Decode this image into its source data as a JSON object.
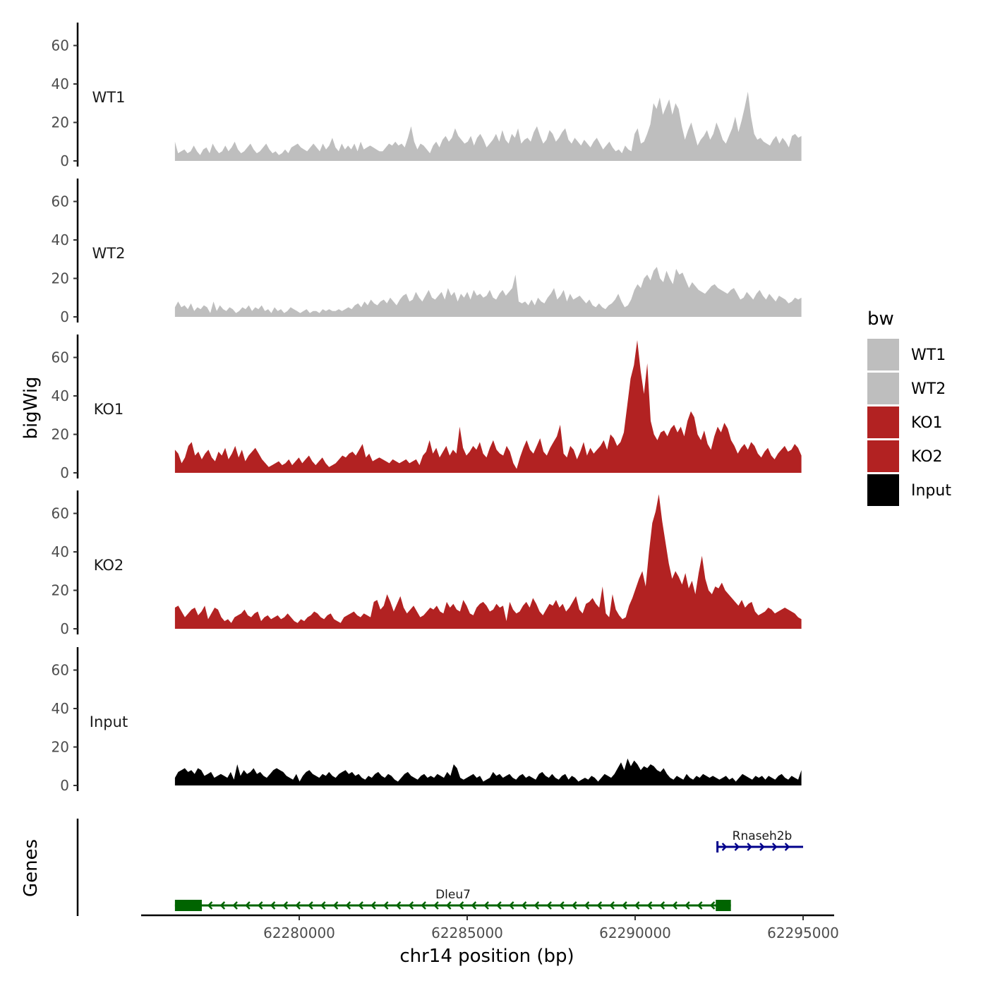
{
  "chart_data": {
    "type": "area",
    "chromosome": "chr14",
    "xlabel": "chr14 position (bp)",
    "ylabel": "bigWig",
    "genes_label": "Genes",
    "xlim": [
      62275250,
      62296000
    ],
    "ylim": [
      0,
      72
    ],
    "x_ticks": [
      62280000,
      62285000,
      62290000,
      62295000
    ],
    "x_tick_labels": [
      "62280000",
      "62285000",
      "62290000",
      "62295000"
    ],
    "y_ticks": [
      0,
      20,
      40,
      60
    ],
    "y_tick_labels": [
      "0",
      "20",
      "40",
      "60"
    ],
    "x_start": 62276300,
    "x_end": 62294950,
    "series": [
      {
        "name": "WT1",
        "color": "#bebebe",
        "values": [
          10,
          4,
          5,
          6,
          4,
          5,
          8,
          5,
          3,
          6,
          7,
          4,
          9,
          6,
          4,
          5,
          8,
          5,
          7,
          10,
          6,
          4,
          5,
          7,
          9,
          6,
          4,
          5,
          7,
          9,
          6,
          4,
          5,
          3,
          4,
          6,
          4,
          7,
          8,
          9,
          7,
          6,
          5,
          7,
          9,
          7,
          5,
          9,
          6,
          8,
          12,
          7,
          5,
          9,
          6,
          8,
          6,
          9,
          5,
          10,
          6,
          7,
          8,
          7,
          6,
          5,
          5,
          7,
          9,
          8,
          10,
          8,
          9,
          7,
          12,
          18,
          10,
          6,
          9,
          8,
          6,
          4,
          8,
          10,
          7,
          11,
          13,
          10,
          12,
          17,
          13,
          11,
          9,
          10,
          13,
          8,
          12,
          14,
          11,
          7,
          9,
          11,
          14,
          10,
          16,
          11,
          9,
          14,
          12,
          17,
          9,
          11,
          12,
          10,
          15,
          18,
          13,
          9,
          11,
          16,
          14,
          10,
          12,
          15,
          17,
          11,
          9,
          12,
          10,
          8,
          11,
          9,
          7,
          10,
          12,
          9,
          6,
          8,
          10,
          7,
          5,
          6,
          4,
          8,
          6,
          5,
          14,
          17,
          9,
          10,
          14,
          19,
          30,
          27,
          33,
          24,
          28,
          32,
          24,
          30,
          27,
          18,
          11,
          16,
          20,
          14,
          8,
          11,
          13,
          16,
          11,
          14,
          20,
          16,
          11,
          9,
          13,
          17,
          23,
          15,
          21,
          28,
          36,
          23,
          14,
          11,
          12,
          10,
          9,
          8,
          11,
          13,
          9,
          12,
          10,
          7,
          13,
          14,
          12,
          13
        ]
      },
      {
        "name": "WT2",
        "color": "#bebebe",
        "values": [
          5,
          8,
          5,
          6,
          4,
          7,
          3,
          5,
          4,
          6,
          5,
          2,
          8,
          3,
          6,
          4,
          3,
          5,
          4,
          2,
          3,
          5,
          4,
          6,
          3,
          5,
          4,
          6,
          3,
          4,
          2,
          5,
          3,
          4,
          2,
          3,
          5,
          4,
          3,
          2,
          3,
          4,
          2,
          3,
          3,
          2,
          4,
          3,
          4,
          3,
          3,
          4,
          3,
          4,
          5,
          4,
          6,
          7,
          5,
          8,
          6,
          9,
          7,
          6,
          8,
          9,
          7,
          10,
          8,
          6,
          9,
          11,
          12,
          8,
          9,
          13,
          10,
          8,
          11,
          14,
          10,
          9,
          11,
          13,
          9,
          15,
          11,
          13,
          8,
          12,
          10,
          13,
          9,
          14,
          11,
          12,
          10,
          11,
          14,
          10,
          9,
          12,
          14,
          11,
          13,
          15,
          22,
          8,
          7,
          8,
          6,
          9,
          6,
          10,
          8,
          7,
          10,
          12,
          15,
          9,
          11,
          14,
          8,
          12,
          9,
          10,
          11,
          9,
          7,
          9,
          6,
          5,
          7,
          5,
          4,
          6,
          7,
          9,
          12,
          8,
          5,
          6,
          9,
          14,
          17,
          15,
          20,
          22,
          19,
          24,
          26,
          20,
          18,
          24,
          20,
          17,
          25,
          22,
          23,
          19,
          15,
          18,
          16,
          14,
          13,
          12,
          14,
          16,
          17,
          15,
          14,
          13,
          12,
          14,
          15,
          12,
          9,
          10,
          13,
          11,
          9,
          12,
          14,
          11,
          9,
          12,
          10,
          8,
          11,
          10,
          9,
          7,
          8,
          10,
          9,
          10
        ]
      },
      {
        "name": "KO1",
        "color": "#b22222",
        "values": [
          12,
          10,
          5,
          8,
          14,
          16,
          9,
          11,
          7,
          10,
          12,
          8,
          6,
          11,
          9,
          13,
          7,
          10,
          14,
          8,
          12,
          6,
          9,
          11,
          13,
          10,
          7,
          5,
          3,
          4,
          5,
          6,
          4,
          5,
          7,
          4,
          6,
          8,
          5,
          7,
          9,
          6,
          4,
          6,
          8,
          5,
          3,
          4,
          5,
          7,
          9,
          8,
          10,
          11,
          9,
          12,
          15,
          8,
          10,
          6,
          7,
          8,
          7,
          6,
          5,
          7,
          6,
          5,
          6,
          7,
          5,
          6,
          7,
          4,
          9,
          11,
          17,
          10,
          13,
          8,
          11,
          14,
          9,
          12,
          10,
          24,
          13,
          9,
          11,
          14,
          12,
          16,
          10,
          8,
          13,
          17,
          12,
          10,
          9,
          14,
          11,
          5,
          2,
          8,
          13,
          17,
          12,
          10,
          14,
          18,
          11,
          9,
          13,
          16,
          19,
          25,
          10,
          8,
          14,
          12,
          7,
          11,
          16,
          9,
          13,
          10,
          12,
          14,
          17,
          12,
          20,
          18,
          14,
          16,
          21,
          35,
          49,
          56,
          69,
          53,
          41,
          57,
          27,
          20,
          17,
          21,
          22,
          19,
          23,
          25,
          21,
          24,
          19,
          27,
          32,
          29,
          20,
          17,
          22,
          15,
          12,
          19,
          24,
          21,
          26,
          23,
          17,
          14,
          10,
          13,
          15,
          12,
          16,
          14,
          10,
          8,
          11,
          13,
          9,
          7,
          10,
          12,
          14,
          11,
          12,
          15,
          13,
          9
        ]
      },
      {
        "name": "KO2",
        "color": "#b22222",
        "values": [
          11,
          12,
          9,
          6,
          8,
          10,
          11,
          7,
          9,
          12,
          5,
          8,
          11,
          10,
          6,
          4,
          5,
          3,
          6,
          7,
          8,
          10,
          7,
          6,
          8,
          9,
          4,
          6,
          7,
          5,
          6,
          7,
          5,
          6,
          8,
          6,
          4,
          3,
          5,
          4,
          6,
          7,
          9,
          8,
          6,
          5,
          7,
          8,
          5,
          4,
          3,
          6,
          7,
          8,
          9,
          7,
          6,
          8,
          7,
          6,
          14,
          15,
          10,
          12,
          18,
          14,
          9,
          13,
          17,
          11,
          8,
          10,
          12,
          9,
          6,
          7,
          9,
          11,
          10,
          12,
          9,
          8,
          14,
          11,
          13,
          10,
          9,
          15,
          12,
          8,
          7,
          11,
          13,
          14,
          12,
          9,
          10,
          13,
          11,
          12,
          4,
          14,
          10,
          8,
          9,
          12,
          14,
          11,
          16,
          13,
          9,
          7,
          10,
          13,
          12,
          15,
          11,
          13,
          9,
          11,
          14,
          17,
          10,
          8,
          13,
          14,
          16,
          13,
          11,
          22,
          8,
          6,
          18,
          10,
          7,
          5,
          6,
          12,
          16,
          21,
          26,
          30,
          22,
          40,
          55,
          61,
          70,
          56,
          45,
          34,
          26,
          30,
          27,
          23,
          29,
          21,
          25,
          18,
          29,
          38,
          26,
          20,
          18,
          22,
          21,
          24,
          20,
          18,
          16,
          14,
          12,
          15,
          11,
          13,
          14,
          9,
          7,
          8,
          9,
          11,
          10,
          8,
          9,
          10,
          11,
          10,
          9,
          8,
          6,
          5
        ]
      },
      {
        "name": "Input",
        "color": "#000000",
        "values": [
          4,
          7,
          8,
          9,
          7,
          8,
          6,
          9,
          8,
          5,
          6,
          7,
          4,
          5,
          6,
          5,
          4,
          7,
          3,
          11,
          5,
          8,
          6,
          7,
          9,
          6,
          7,
          5,
          4,
          6,
          8,
          9,
          8,
          7,
          5,
          4,
          3,
          6,
          2,
          5,
          7,
          8,
          6,
          5,
          4,
          6,
          5,
          7,
          5,
          4,
          6,
          7,
          8,
          6,
          7,
          5,
          6,
          4,
          3,
          5,
          4,
          6,
          7,
          5,
          4,
          6,
          5,
          3,
          2,
          4,
          6,
          7,
          5,
          4,
          3,
          5,
          6,
          4,
          5,
          4,
          6,
          5,
          4,
          7,
          5,
          11,
          9,
          4,
          3,
          4,
          5,
          6,
          4,
          5,
          2,
          3,
          4,
          7,
          5,
          6,
          4,
          5,
          6,
          4,
          3,
          5,
          6,
          4,
          5,
          4,
          3,
          6,
          7,
          5,
          4,
          6,
          4,
          3,
          5,
          6,
          3,
          5,
          4,
          2,
          3,
          4,
          3,
          5,
          4,
          2,
          4,
          6,
          5,
          4,
          6,
          9,
          12,
          8,
          14,
          10,
          13,
          11,
          8,
          10,
          9,
          11,
          10,
          8,
          7,
          9,
          6,
          4,
          3,
          5,
          4,
          3,
          6,
          4,
          3,
          5,
          4,
          6,
          5,
          4,
          5,
          4,
          3,
          4,
          5,
          3,
          4,
          2,
          4,
          6,
          5,
          4,
          3,
          5,
          4,
          5,
          3,
          5,
          4,
          3,
          5,
          6,
          4,
          3,
          5,
          4,
          3,
          8
        ]
      }
    ],
    "genes": [
      {
        "name": "Dleu7",
        "strand": "-",
        "start": 62276300,
        "end": 62292850,
        "color": "#006400",
        "exons": [
          [
            62276300,
            62277100
          ],
          [
            62292400,
            62292850
          ]
        ]
      },
      {
        "name": "Rnaseh2b",
        "strand": "+",
        "start": 62292450,
        "end": 62295000,
        "color": "#00008b",
        "exons": []
      }
    ],
    "legend": {
      "title": "bw",
      "position": "right",
      "entries": [
        {
          "label": "WT1",
          "color": "#bebebe"
        },
        {
          "label": "WT2",
          "color": "#bebebe"
        },
        {
          "label": "KO1",
          "color": "#b22222"
        },
        {
          "label": "KO2",
          "color": "#b22222"
        },
        {
          "label": "Input",
          "color": "#000000"
        }
      ]
    }
  }
}
